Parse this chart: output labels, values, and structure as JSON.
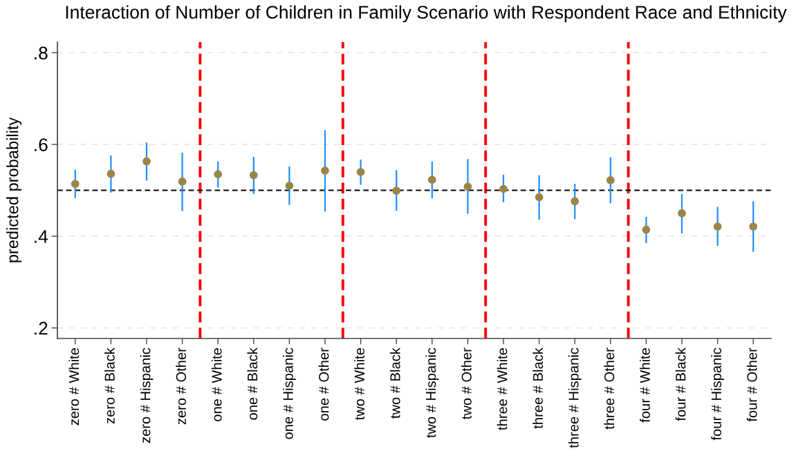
{
  "chart_data": {
    "type": "scatter",
    "title": "Interaction of Number of Children in Family Scenario with Respondent Race and Ethnicity",
    "ylabel": "predicted probability",
    "categories": [
      "zero # White",
      "zero # Black",
      "zero # Hispanic",
      "zero # Other",
      "one # White",
      "one # Black",
      "one # Hispanic",
      "one # Other",
      "two # White",
      "two # Black",
      "two # Hispanic",
      "two # Other",
      "three # White",
      "three # Black",
      "three # Hispanic",
      "three # Other",
      "four # White",
      "four # Black",
      "four # Hispanic",
      "four # Other"
    ],
    "series": [
      {
        "color": "#9a8545",
        "values": [
          0.514,
          0.536,
          0.563,
          0.519,
          0.535,
          0.533,
          0.51,
          0.543,
          0.54,
          0.499,
          0.523,
          0.508,
          0.503,
          0.485,
          0.476,
          0.522,
          0.414,
          0.45,
          0.421,
          0.421
        ],
        "errors": [
          [
            0.483,
            0.545
          ],
          [
            0.495,
            0.576
          ],
          [
            0.521,
            0.604
          ],
          [
            0.455,
            0.582
          ],
          [
            0.506,
            0.563
          ],
          [
            0.492,
            0.573
          ],
          [
            0.468,
            0.552
          ],
          [
            0.454,
            0.631
          ],
          [
            0.512,
            0.567
          ],
          [
            0.455,
            0.544
          ],
          [
            0.483,
            0.563
          ],
          [
            0.449,
            0.568
          ],
          [
            0.474,
            0.534
          ],
          [
            0.436,
            0.533
          ],
          [
            0.437,
            0.514
          ],
          [
            0.472,
            0.572
          ],
          [
            0.385,
            0.442
          ],
          [
            0.406,
            0.492
          ],
          [
            0.379,
            0.464
          ],
          [
            0.366,
            0.476
          ]
        ]
      }
    ],
    "ylim": [
      0.177,
      0.823
    ],
    "yticks": [
      {
        "value": 0.2,
        "label": ".2"
      },
      {
        "value": 0.4,
        "label": ".4"
      },
      {
        "value": 0.6,
        "label": ".6"
      },
      {
        "value": 0.8,
        "label": ".8"
      }
    ],
    "grid": "y",
    "marker": "circle",
    "ref_lines": [
      {
        "axis": "y",
        "value": 0.5,
        "color": "#000000",
        "line_style": "dashed"
      }
    ]
  }
}
